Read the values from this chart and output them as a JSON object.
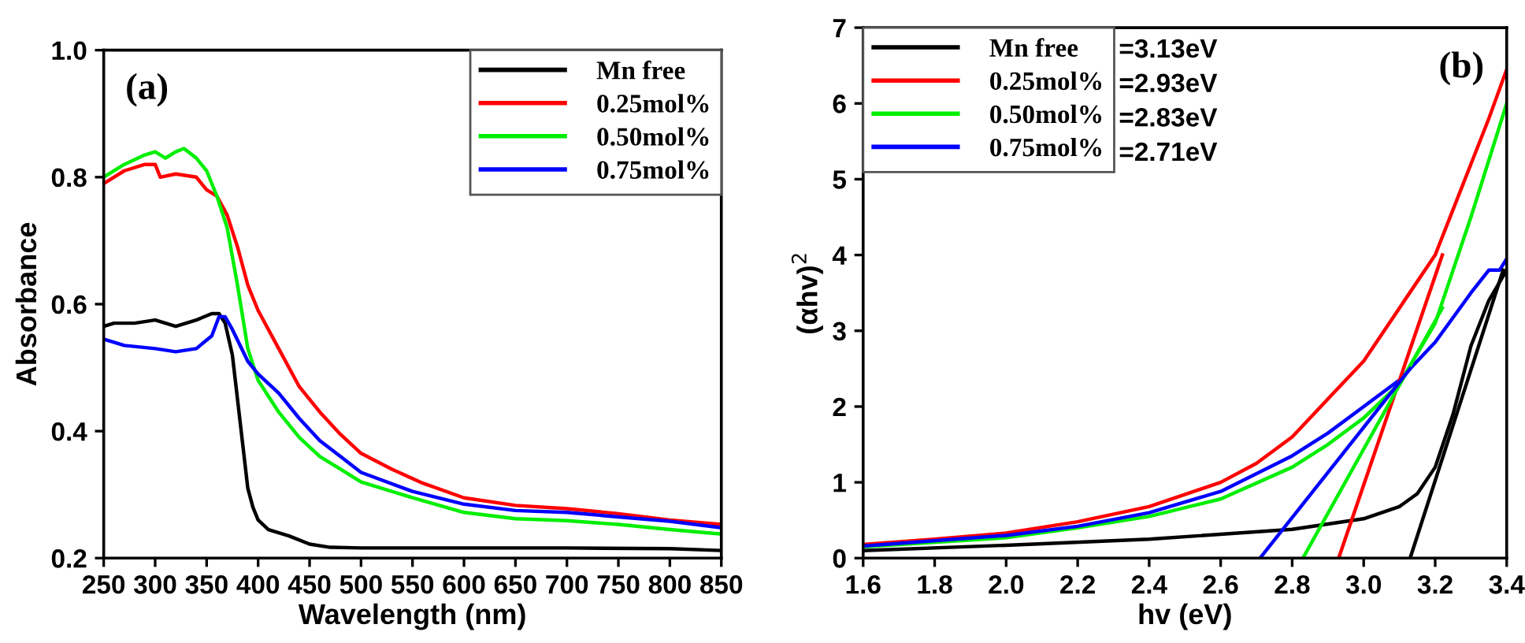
{
  "chart_data": [
    {
      "type": "line",
      "xlabel": "Wavelength (nm)",
      "ylabel": "Absorbance",
      "xlim": [
        250,
        850
      ],
      "ylim": [
        0.2,
        1.0
      ],
      "xticks": [
        250,
        300,
        350,
        400,
        450,
        500,
        550,
        600,
        650,
        700,
        750,
        800,
        850
      ],
      "yticks": [
        0.2,
        0.4,
        0.6,
        0.8,
        {
          "value": 1.0,
          "label": "1.0"
        }
      ],
      "legend": "top right",
      "grid": false,
      "annotations": [
        "(a)"
      ],
      "series": [
        {
          "name": "Mn free",
          "color": "#000000",
          "x": [
            250,
            260,
            280,
            300,
            320,
            340,
            355,
            362,
            368,
            375,
            380,
            385,
            390,
            395,
            400,
            410,
            430,
            450,
            470,
            500,
            600,
            700,
            800,
            850
          ],
          "values": [
            0.565,
            0.57,
            0.57,
            0.575,
            0.565,
            0.575,
            0.585,
            0.585,
            0.57,
            0.52,
            0.45,
            0.38,
            0.31,
            0.28,
            0.26,
            0.245,
            0.235,
            0.222,
            0.217,
            0.216,
            0.216,
            0.216,
            0.215,
            0.212
          ]
        },
        {
          "name": "0.25mol%",
          "color": "#ff0000",
          "x": [
            250,
            270,
            290,
            300,
            305,
            320,
            340,
            350,
            360,
            370,
            380,
            390,
            400,
            420,
            440,
            460,
            480,
            500,
            530,
            560,
            600,
            650,
            700,
            750,
            800,
            850
          ],
          "values": [
            0.79,
            0.81,
            0.82,
            0.82,
            0.8,
            0.805,
            0.8,
            0.78,
            0.77,
            0.74,
            0.69,
            0.63,
            0.59,
            0.53,
            0.47,
            0.43,
            0.395,
            0.365,
            0.34,
            0.318,
            0.295,
            0.283,
            0.278,
            0.27,
            0.26,
            0.253
          ]
        },
        {
          "name": "0.50mol%",
          "color": "#00ee00",
          "x": [
            250,
            270,
            290,
            300,
            310,
            320,
            328,
            340,
            350,
            360,
            370,
            380,
            390,
            400,
            420,
            440,
            460,
            480,
            500,
            550,
            600,
            650,
            700,
            750,
            800,
            850
          ],
          "values": [
            0.8,
            0.82,
            0.835,
            0.84,
            0.83,
            0.84,
            0.845,
            0.83,
            0.81,
            0.77,
            0.72,
            0.63,
            0.53,
            0.48,
            0.43,
            0.39,
            0.36,
            0.34,
            0.32,
            0.295,
            0.272,
            0.262,
            0.259,
            0.253,
            0.245,
            0.238
          ]
        },
        {
          "name": "0.75mol%",
          "color": "#0000ff",
          "x": [
            250,
            270,
            300,
            320,
            340,
            355,
            362,
            368,
            375,
            390,
            400,
            420,
            440,
            460,
            480,
            500,
            550,
            600,
            650,
            700,
            750,
            800,
            850
          ],
          "values": [
            0.545,
            0.535,
            0.53,
            0.525,
            0.53,
            0.55,
            0.58,
            0.58,
            0.56,
            0.51,
            0.49,
            0.46,
            0.42,
            0.385,
            0.36,
            0.335,
            0.305,
            0.285,
            0.275,
            0.272,
            0.265,
            0.258,
            0.248
          ]
        }
      ]
    },
    {
      "type": "line",
      "xlabel": "hv (eV)",
      "ylabel": "(αhv)$^{2}$",
      "xlim": [
        1.6,
        3.4
      ],
      "ylim": [
        0,
        7
      ],
      "xticks": [
        {
          "value": 1.6,
          "label": "1.6"
        },
        {
          "value": 1.8,
          "label": "1.8"
        },
        {
          "value": 2.0,
          "label": "2.0"
        },
        {
          "value": 2.2,
          "label": "2.2"
        },
        {
          "value": 2.4,
          "label": "2.4"
        },
        {
          "value": 2.6,
          "label": "2.6"
        },
        {
          "value": 2.8,
          "label": "2.8"
        },
        {
          "value": 3.0,
          "label": "3.0"
        },
        {
          "value": 3.2,
          "label": "3.2"
        },
        {
          "value": 3.4,
          "label": "3.4"
        }
      ],
      "yticks": [
        0,
        1,
        2,
        3,
        4,
        5,
        6,
        7
      ],
      "legend": "top left",
      "grid": false,
      "annotations": [
        "(b)",
        "=3.13eV",
        "=2.93eV",
        "=2.83eV",
        "=2.71eV"
      ],
      "series": [
        {
          "name": "Mn free",
          "color": "#000000",
          "x": [
            1.6,
            2.0,
            2.4,
            2.8,
            3.0,
            3.1,
            3.15,
            3.2,
            3.25,
            3.3,
            3.35,
            3.4
          ],
          "values": [
            0.1,
            0.17,
            0.25,
            0.38,
            0.52,
            0.68,
            0.85,
            1.2,
            1.9,
            2.8,
            3.4,
            3.8
          ]
        },
        {
          "name": "0.25mol%",
          "color": "#ff0000",
          "x": [
            1.6,
            1.8,
            2.0,
            2.2,
            2.4,
            2.6,
            2.7,
            2.8,
            2.9,
            3.0,
            3.1,
            3.2,
            3.3,
            3.35,
            3.4
          ],
          "values": [
            0.18,
            0.25,
            0.33,
            0.48,
            0.68,
            1.0,
            1.25,
            1.6,
            2.1,
            2.6,
            3.3,
            4.0,
            5.2,
            5.8,
            6.45
          ]
        },
        {
          "name": "0.50mol%",
          "color": "#00ee00",
          "x": [
            1.6,
            2.0,
            2.2,
            2.4,
            2.6,
            2.8,
            2.9,
            3.0,
            3.1,
            3.2,
            3.3,
            3.4
          ],
          "values": [
            0.15,
            0.27,
            0.4,
            0.55,
            0.78,
            1.2,
            1.5,
            1.85,
            2.3,
            3.1,
            4.5,
            6.0
          ]
        },
        {
          "name": "0.75mol%",
          "color": "#0000ff",
          "x": [
            1.6,
            2.0,
            2.2,
            2.4,
            2.6,
            2.8,
            2.9,
            3.0,
            3.1,
            3.2,
            3.3,
            3.35,
            3.38,
            3.4
          ],
          "values": [
            0.16,
            0.3,
            0.42,
            0.6,
            0.88,
            1.35,
            1.65,
            2.0,
            2.35,
            2.85,
            3.5,
            3.8,
            3.8,
            3.95
          ]
        },
        {
          "color": "#000000",
          "x": [
            3.13,
            3.39
          ],
          "values": [
            0,
            3.8
          ]
        },
        {
          "color": "#ff0000",
          "x": [
            2.93,
            3.22
          ],
          "values": [
            0,
            4.0
          ]
        },
        {
          "color": "#00ee00",
          "x": [
            2.83,
            3.22
          ],
          "values": [
            0,
            3.3
          ]
        },
        {
          "color": "#0000ff",
          "x": [
            2.71,
            3.13
          ],
          "values": [
            0,
            2.5
          ]
        }
      ]
    }
  ]
}
